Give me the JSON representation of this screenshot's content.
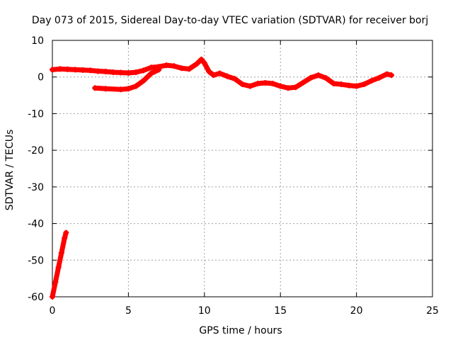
{
  "chart_data": {
    "type": "scatter",
    "title": "Day 073 of 2015, Sidereal Day-to-day VTEC variation (SDTVAR) for receiver borj",
    "xlabel": "GPS time / hours",
    "ylabel": "SDTVAR / TECUs",
    "xlim": [
      0,
      25
    ],
    "ylim": [
      -60,
      10
    ],
    "xticks": [
      0,
      5,
      10,
      15,
      20,
      25
    ],
    "yticks": [
      -60,
      -50,
      -40,
      -30,
      -20,
      -10,
      0,
      10
    ],
    "grid": true,
    "series_color": "#ff0000",
    "series": [
      {
        "name": "main-track",
        "points": [
          [
            0.0,
            2.0
          ],
          [
            0.5,
            2.2
          ],
          [
            1.0,
            2.1
          ],
          [
            1.5,
            2.0
          ],
          [
            2.0,
            1.9
          ],
          [
            2.5,
            1.8
          ],
          [
            3.0,
            1.6
          ],
          [
            3.5,
            1.5
          ],
          [
            4.0,
            1.3
          ],
          [
            4.5,
            1.2
          ],
          [
            5.0,
            1.1
          ],
          [
            5.5,
            1.3
          ],
          [
            6.0,
            1.8
          ],
          [
            6.5,
            2.6
          ],
          [
            7.0,
            2.8
          ],
          [
            7.5,
            3.2
          ],
          [
            8.0,
            3.0
          ],
          [
            8.5,
            2.4
          ],
          [
            9.0,
            2.2
          ],
          [
            9.5,
            3.6
          ],
          [
            9.8,
            4.8
          ],
          [
            10.0,
            3.8
          ],
          [
            10.3,
            1.5
          ],
          [
            10.6,
            0.5
          ],
          [
            11.0,
            1.0
          ],
          [
            11.5,
            0.2
          ],
          [
            12.0,
            -0.5
          ],
          [
            12.5,
            -2.0
          ],
          [
            13.0,
            -2.5
          ],
          [
            13.5,
            -1.8
          ],
          [
            14.0,
            -1.6
          ],
          [
            14.5,
            -1.8
          ],
          [
            15.0,
            -2.5
          ],
          [
            15.5,
            -3.0
          ],
          [
            16.0,
            -2.8
          ],
          [
            16.5,
            -1.5
          ],
          [
            17.0,
            -0.2
          ],
          [
            17.5,
            0.5
          ],
          [
            18.0,
            -0.3
          ],
          [
            18.5,
            -1.8
          ],
          [
            19.0,
            -2.0
          ],
          [
            19.5,
            -2.3
          ],
          [
            20.0,
            -2.5
          ],
          [
            20.5,
            -2.0
          ],
          [
            21.0,
            -1.0
          ],
          [
            21.5,
            -0.2
          ],
          [
            22.0,
            0.8
          ],
          [
            22.3,
            0.5
          ]
        ]
      },
      {
        "name": "lower-arc",
        "points": [
          [
            2.8,
            -3.0
          ],
          [
            3.5,
            -3.2
          ],
          [
            4.5,
            -3.4
          ],
          [
            5.0,
            -3.2
          ],
          [
            5.5,
            -2.5
          ],
          [
            6.0,
            -1.0
          ],
          [
            6.5,
            1.0
          ],
          [
            7.0,
            2.0
          ]
        ]
      },
      {
        "name": "steep-segment",
        "points": [
          [
            0.0,
            -60.0
          ],
          [
            0.2,
            -56.0
          ],
          [
            0.4,
            -52.0
          ],
          [
            0.6,
            -48.0
          ],
          [
            0.8,
            -44.0
          ],
          [
            0.9,
            -42.5
          ]
        ]
      }
    ]
  }
}
